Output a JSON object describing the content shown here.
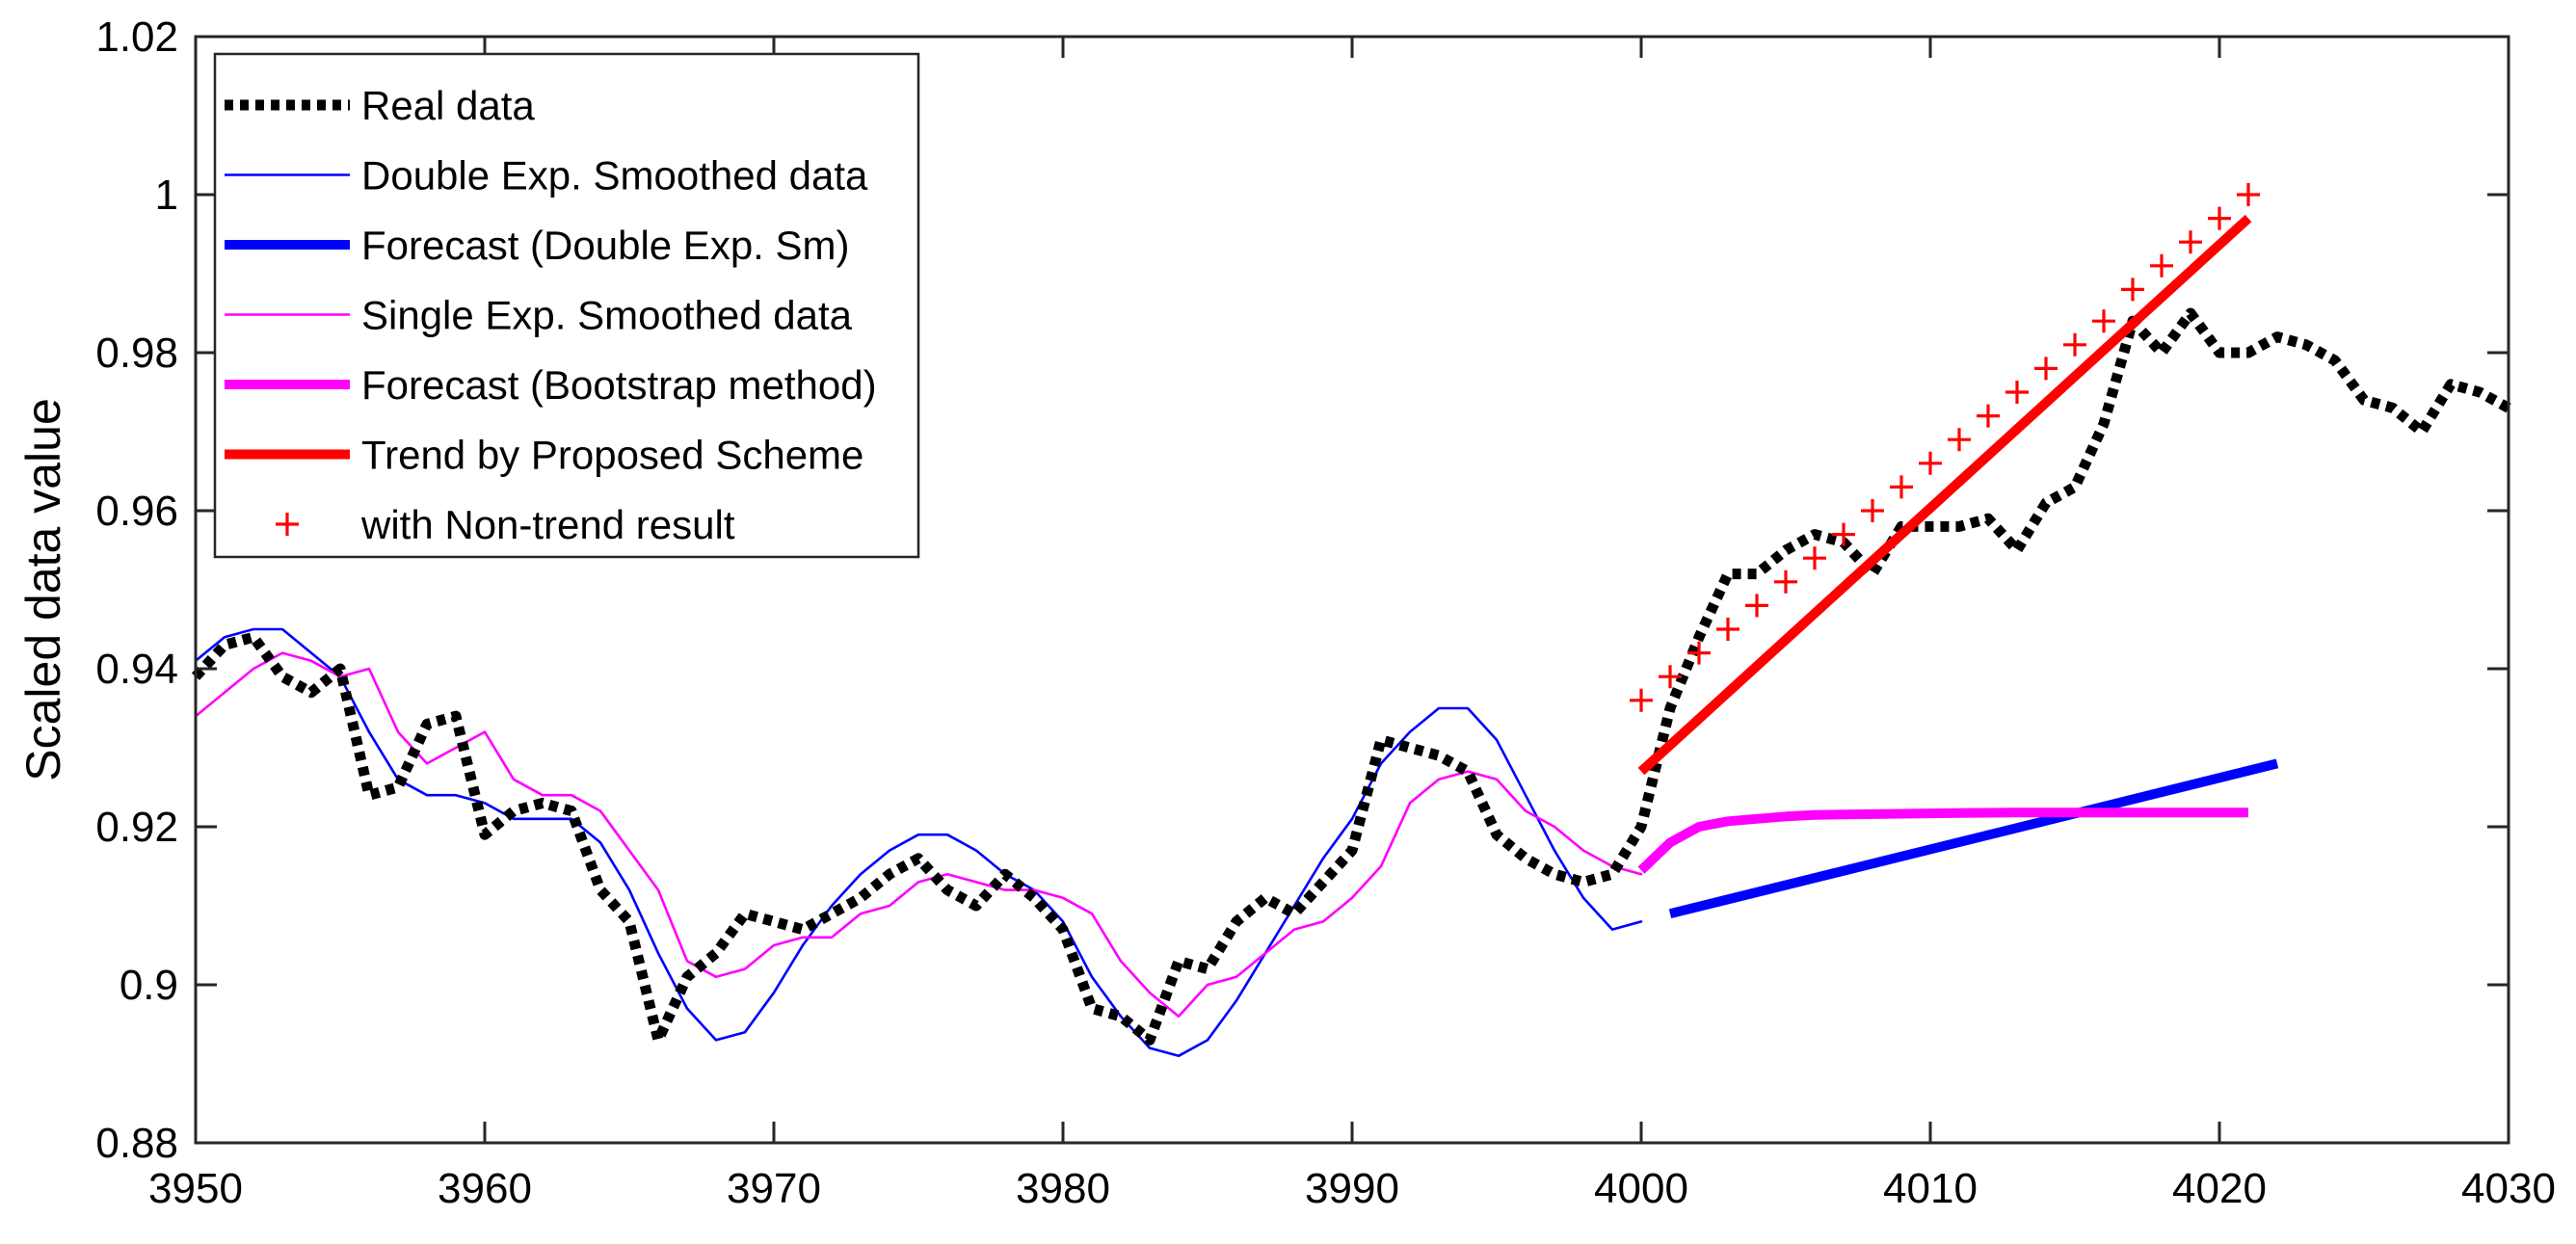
{
  "chart_data": {
    "type": "line",
    "title": "",
    "xlabel": "",
    "ylabel": "Scaled data value",
    "xlim": [
      3950,
      4030
    ],
    "ylim": [
      0.88,
      1.02
    ],
    "xticks": [
      3950,
      3960,
      3970,
      3980,
      3990,
      4000,
      4010,
      4020,
      4030
    ],
    "xtick_labels": [
      "3950",
      "3960",
      "3970",
      "3980",
      "3990",
      "4000",
      "4010",
      "4020",
      "4030"
    ],
    "yticks": [
      0.88,
      0.9,
      0.92,
      0.94,
      0.96,
      0.98,
      1.0,
      1.02
    ],
    "ytick_labels": [
      "0.88",
      "0.9",
      "0.92",
      "0.94",
      "0.96",
      "0.98",
      "1",
      "1.02"
    ],
    "grid": false,
    "legend_position": "top-left",
    "series": [
      {
        "name": "Real data",
        "color": "#000000",
        "style": "dotted",
        "width": "thick",
        "x": [
          3950,
          3951,
          3952,
          3953,
          3954,
          3955,
          3956,
          3957,
          3958,
          3959,
          3960,
          3961,
          3962,
          3963,
          3964,
          3965,
          3966,
          3967,
          3968,
          3969,
          3970,
          3971,
          3972,
          3973,
          3974,
          3975,
          3976,
          3977,
          3978,
          3979,
          3980,
          3981,
          3982,
          3983,
          3984,
          3985,
          3986,
          3987,
          3988,
          3989,
          3990,
          3991,
          3992,
          3993,
          3994,
          3995,
          3996,
          3997,
          3998,
          3999,
          4000,
          4001,
          4002,
          4003,
          4004,
          4005,
          4006,
          4007,
          4008,
          4009,
          4010,
          4011,
          4012,
          4013,
          4014,
          4015,
          4016,
          4017,
          4018,
          4019,
          4020,
          4021,
          4022,
          4023,
          4024,
          4025,
          4026,
          4027,
          4028,
          4029,
          4030
        ],
        "y": [
          0.939,
          0.943,
          0.944,
          0.939,
          0.937,
          0.94,
          0.924,
          0.925,
          0.933,
          0.934,
          0.919,
          0.922,
          0.923,
          0.922,
          0.912,
          0.908,
          0.893,
          0.901,
          0.904,
          0.909,
          0.908,
          0.907,
          0.909,
          0.911,
          0.914,
          0.916,
          0.912,
          0.91,
          0.914,
          0.911,
          0.907,
          0.897,
          0.896,
          0.893,
          0.903,
          0.902,
          0.908,
          0.911,
          0.909,
          0.913,
          0.917,
          0.931,
          0.93,
          0.929,
          0.927,
          0.919,
          0.916,
          0.914,
          0.913,
          0.914,
          0.92,
          0.935,
          0.944,
          0.952,
          0.952,
          0.955,
          0.957,
          0.956,
          0.952,
          0.958,
          0.958,
          0.958,
          0.959,
          0.955,
          0.961,
          0.963,
          0.971,
          0.984,
          0.98,
          0.985,
          0.98,
          0.98,
          0.982,
          0.981,
          0.979,
          0.974,
          0.973,
          0.97,
          0.976,
          0.975,
          0.973
        ]
      },
      {
        "name": "Double Exp. Smoothed data",
        "color": "#0000ff",
        "style": "solid",
        "width": "thin",
        "x": [
          3950,
          3951,
          3952,
          3953,
          3954,
          3955,
          3956,
          3957,
          3958,
          3959,
          3960,
          3961,
          3962,
          3963,
          3964,
          3965,
          3966,
          3967,
          3968,
          3969,
          3970,
          3971,
          3972,
          3973,
          3974,
          3975,
          3976,
          3977,
          3978,
          3979,
          3980,
          3981,
          3982,
          3983,
          3984,
          3985,
          3986,
          3987,
          3988,
          3989,
          3990,
          3991,
          3992,
          3993,
          3994,
          3995,
          3996,
          3997,
          3998,
          3999,
          4000
        ],
        "y": [
          0.941,
          0.944,
          0.945,
          0.945,
          0.942,
          0.939,
          0.932,
          0.926,
          0.924,
          0.924,
          0.923,
          0.921,
          0.921,
          0.921,
          0.918,
          0.912,
          0.904,
          0.897,
          0.893,
          0.894,
          0.899,
          0.905,
          0.91,
          0.914,
          0.917,
          0.919,
          0.919,
          0.917,
          0.914,
          0.912,
          0.908,
          0.901,
          0.896,
          0.892,
          0.891,
          0.893,
          0.898,
          0.904,
          0.91,
          0.916,
          0.921,
          0.928,
          0.932,
          0.935,
          0.935,
          0.931,
          0.924,
          0.917,
          0.911,
          0.907,
          0.908
        ]
      },
      {
        "name": "Forecast (Double Exp. Sm)",
        "color": "#0000ff",
        "style": "solid",
        "width": "thick",
        "x": [
          4001,
          4022
        ],
        "y": [
          0.909,
          0.928
        ]
      },
      {
        "name": "Single Exp. Smoothed data",
        "color": "#ff00ff",
        "style": "solid",
        "width": "thin",
        "x": [
          3950,
          3951,
          3952,
          3953,
          3954,
          3955,
          3956,
          3957,
          3958,
          3959,
          3960,
          3961,
          3962,
          3963,
          3964,
          3965,
          3966,
          3967,
          3968,
          3969,
          3970,
          3971,
          3972,
          3973,
          3974,
          3975,
          3976,
          3977,
          3978,
          3979,
          3980,
          3981,
          3982,
          3983,
          3984,
          3985,
          3986,
          3987,
          3988,
          3989,
          3990,
          3991,
          3992,
          3993,
          3994,
          3995,
          3996,
          3997,
          3998,
          3999,
          4000
        ],
        "y": [
          0.934,
          0.937,
          0.94,
          0.942,
          0.941,
          0.939,
          0.94,
          0.932,
          0.928,
          0.93,
          0.932,
          0.926,
          0.924,
          0.924,
          0.922,
          0.917,
          0.912,
          0.903,
          0.901,
          0.902,
          0.905,
          0.906,
          0.906,
          0.909,
          0.91,
          0.913,
          0.914,
          0.913,
          0.912,
          0.912,
          0.911,
          0.909,
          0.903,
          0.899,
          0.896,
          0.9,
          0.901,
          0.904,
          0.907,
          0.908,
          0.911,
          0.915,
          0.923,
          0.926,
          0.927,
          0.926,
          0.922,
          0.92,
          0.917,
          0.915,
          0.914
        ]
      },
      {
        "name": "Forecast (Bootstrap method)",
        "color": "#ff00ff",
        "style": "solid",
        "width": "thick",
        "x": [
          4000,
          4001,
          4002,
          4003,
          4004,
          4005,
          4006,
          4008,
          4010,
          4013,
          4016,
          4019,
          4021
        ],
        "y": [
          0.9145,
          0.918,
          0.92,
          0.9207,
          0.921,
          0.9213,
          0.9215,
          0.9216,
          0.9217,
          0.9218,
          0.9218,
          0.9218,
          0.9218
        ]
      },
      {
        "name": "Trend by Proposed Scheme",
        "color": "#ff0000",
        "style": "solid",
        "width": "thick",
        "x": [
          4000,
          4021
        ],
        "y": [
          0.927,
          0.997
        ]
      },
      {
        "name": "with Non-trend result",
        "color": "#ff0000",
        "style": "markers",
        "marker": "+",
        "x": [
          4000,
          4001,
          4002,
          4003,
          4004,
          4005,
          4006,
          4007,
          4008,
          4009,
          4010,
          4011,
          4012,
          4013,
          4014,
          4015,
          4016,
          4017,
          4018,
          4019,
          4020,
          4021
        ],
        "y": [
          0.936,
          0.939,
          0.942,
          0.945,
          0.948,
          0.951,
          0.954,
          0.957,
          0.96,
          0.963,
          0.966,
          0.969,
          0.972,
          0.975,
          0.978,
          0.981,
          0.984,
          0.988,
          0.991,
          0.994,
          0.997,
          1.0
        ]
      }
    ]
  }
}
